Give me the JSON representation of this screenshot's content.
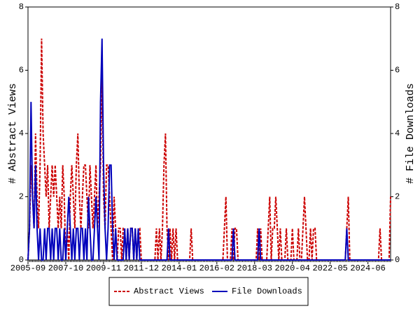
{
  "chart_data": {
    "type": "line",
    "x": [
      "2005-09",
      "2005-10",
      "2005-11",
      "2005-12",
      "2006-01",
      "2006-02",
      "2006-03",
      "2006-04",
      "2006-05",
      "2006-06",
      "2006-07",
      "2006-08",
      "2006-09",
      "2006-10",
      "2006-11",
      "2006-12",
      "2007-01",
      "2007-02",
      "2007-03",
      "2007-04",
      "2007-05",
      "2007-06",
      "2007-07",
      "2007-08",
      "2007-09",
      "2007-10",
      "2007-11",
      "2007-12",
      "2008-01",
      "2008-02",
      "2008-03",
      "2008-04",
      "2008-05",
      "2008-06",
      "2008-07",
      "2008-08",
      "2008-09",
      "2008-10",
      "2008-11",
      "2008-12",
      "2009-01",
      "2009-02",
      "2009-03",
      "2009-04",
      "2009-05",
      "2009-06",
      "2009-07",
      "2009-08",
      "2009-09",
      "2009-10",
      "2009-11",
      "2009-12",
      "2010-01",
      "2010-02",
      "2010-03",
      "2010-04",
      "2010-05",
      "2010-06",
      "2010-07",
      "2010-08",
      "2010-09",
      "2010-10",
      "2010-11",
      "2010-12",
      "2011-01",
      "2011-02",
      "2011-03",
      "2011-04",
      "2011-05",
      "2011-06",
      "2011-07",
      "2011-08",
      "2011-09",
      "2011-10",
      "2011-11",
      "2011-12",
      "2012-01",
      "2012-02",
      "2012-03",
      "2012-04",
      "2012-05",
      "2012-06",
      "2012-07",
      "2012-08",
      "2012-09",
      "2012-10",
      "2012-11",
      "2012-12",
      "2013-01",
      "2013-02",
      "2013-03",
      "2013-04",
      "2013-05",
      "2013-06",
      "2013-07",
      "2013-08",
      "2013-09",
      "2013-10",
      "2013-11",
      "2013-12",
      "2014-01",
      "2014-02",
      "2014-03",
      "2014-04",
      "2014-05",
      "2014-06",
      "2014-07",
      "2014-08",
      "2014-09",
      "2014-10",
      "2014-11",
      "2014-12",
      "2015-01",
      "2015-02",
      "2015-03",
      "2015-04",
      "2015-05",
      "2015-06",
      "2015-07",
      "2015-08",
      "2015-09",
      "2015-10",
      "2015-11",
      "2015-12",
      "2016-01",
      "2016-02",
      "2016-03",
      "2016-04",
      "2016-05",
      "2016-06",
      "2016-07",
      "2016-08",
      "2016-09",
      "2016-10",
      "2016-11",
      "2016-12",
      "2017-01",
      "2017-02",
      "2017-03",
      "2017-04",
      "2017-05",
      "2017-06",
      "2017-07",
      "2017-08",
      "2017-09",
      "2017-10",
      "2017-11",
      "2017-12",
      "2018-01",
      "2018-02",
      "2018-03",
      "2018-04",
      "2018-05",
      "2018-06",
      "2018-07",
      "2018-08",
      "2018-09",
      "2018-10",
      "2018-11",
      "2018-12",
      "2019-01",
      "2019-02",
      "2019-03",
      "2019-04",
      "2019-05",
      "2019-06",
      "2019-07",
      "2019-08",
      "2019-09",
      "2019-10",
      "2019-11",
      "2019-12",
      "2020-01",
      "2020-02",
      "2020-03",
      "2020-04",
      "2020-05",
      "2020-06",
      "2020-07",
      "2020-08",
      "2020-09",
      "2020-10",
      "2020-11",
      "2020-12",
      "2021-01",
      "2021-02",
      "2021-03",
      "2021-04",
      "2021-05",
      "2021-06",
      "2021-07",
      "2021-08",
      "2021-09",
      "2021-10",
      "2021-11",
      "2021-12",
      "2022-01",
      "2022-02",
      "2022-03",
      "2022-04",
      "2022-05",
      "2022-06",
      "2022-07",
      "2022-08",
      "2022-09",
      "2022-10",
      "2022-11",
      "2022-12",
      "2023-01",
      "2023-02",
      "2023-03",
      "2023-04",
      "2023-05",
      "2023-06",
      "2023-07",
      "2023-08",
      "2023-09",
      "2023-10",
      "2023-11",
      "2023-12",
      "2024-01",
      "2024-02",
      "2024-03",
      "2024-04",
      "2024-05",
      "2024-06",
      "2024-07",
      "2024-08",
      "2024-09",
      "2024-10",
      "2024-11",
      "2024-12",
      "2025-01",
      "2025-02",
      "2025-03",
      "2025-04",
      "2025-05",
      "2025-06",
      "2025-07",
      "2025-08",
      "2025-09"
    ],
    "xtick_indices": [
      0,
      25,
      50,
      75,
      100,
      125,
      150,
      175,
      200,
      225
    ],
    "ylabel": "# Abstract Views",
    "y2label": "# File Downloads",
    "ylim": [
      0,
      8
    ],
    "yticks": [
      0,
      2,
      4,
      6,
      8
    ],
    "y2lim": [
      0,
      8
    ],
    "y2ticks": [
      0,
      2,
      4,
      6,
      8
    ],
    "series": [
      {
        "name": "Abstract Views",
        "color": "#cc0000",
        "dashed": true,
        "values": [
          0,
          1,
          3,
          2,
          1,
          4,
          2,
          1,
          3,
          7,
          4,
          3,
          2,
          3,
          1,
          2,
          3,
          2,
          3,
          2,
          1,
          2,
          1,
          3,
          2,
          0,
          1,
          0,
          2,
          3,
          2,
          1,
          3,
          4,
          2,
          1,
          2,
          3,
          3,
          2,
          1,
          3,
          2,
          1,
          2,
          3,
          1,
          2,
          3,
          6,
          2,
          1,
          3,
          3,
          2,
          1,
          0,
          2,
          1,
          0,
          1,
          1,
          0,
          1,
          1,
          0,
          1,
          0,
          1,
          1,
          0,
          1,
          0,
          1,
          1,
          0,
          0,
          0,
          0,
          0,
          0,
          0,
          0,
          0,
          0,
          1,
          0,
          1,
          0,
          1,
          3,
          4,
          1,
          0,
          1,
          0,
          1,
          0,
          1,
          0,
          0,
          0,
          0,
          0,
          0,
          0,
          0,
          0,
          1,
          0,
          0,
          0,
          0,
          0,
          0,
          0,
          0,
          0,
          0,
          0,
          0,
          0,
          0,
          0,
          0,
          0,
          0,
          0,
          0,
          0,
          1,
          2,
          0,
          0,
          0,
          1,
          0,
          1,
          1,
          0,
          0,
          0,
          0,
          0,
          0,
          0,
          0,
          0,
          0,
          0,
          0,
          0,
          1,
          0,
          1,
          0,
          0,
          0,
          0,
          1,
          2,
          0,
          1,
          1,
          2,
          1,
          0,
          1,
          0,
          0,
          0,
          1,
          0,
          0,
          0,
          1,
          0,
          0,
          0,
          1,
          0,
          0,
          1,
          2,
          1,
          0,
          0,
          1,
          0,
          1,
          1,
          0,
          0,
          0,
          0,
          0,
          0,
          0,
          0,
          0,
          0,
          0,
          0,
          0,
          0,
          0,
          0,
          0,
          0,
          0,
          0,
          1,
          2,
          0,
          0,
          0,
          0,
          0,
          0,
          0,
          0,
          0,
          0,
          0,
          0,
          0,
          0,
          0,
          0,
          0,
          0,
          0,
          0,
          1,
          0,
          0,
          0,
          0,
          0,
          0,
          2
        ]
      },
      {
        "name": "File Downloads",
        "color": "#0000bb",
        "axis": "y2",
        "values": [
          0,
          1,
          5,
          2,
          1,
          3,
          1,
          0,
          1,
          0,
          0,
          1,
          0,
          1,
          1,
          0,
          1,
          0,
          1,
          1,
          0,
          1,
          0,
          0,
          1,
          0,
          1,
          2,
          1,
          0,
          1,
          0,
          1,
          1,
          0,
          1,
          1,
          0,
          1,
          0,
          2,
          1,
          0,
          0,
          1,
          2,
          1,
          0,
          5,
          7,
          3,
          1,
          0,
          1,
          3,
          3,
          1,
          0,
          1,
          0,
          0,
          0,
          0,
          0,
          1,
          0,
          1,
          0,
          1,
          1,
          0,
          1,
          0,
          1,
          0,
          0,
          0,
          0,
          0,
          0,
          0,
          0,
          0,
          0,
          0,
          0,
          0,
          0,
          0,
          0,
          0,
          0,
          0,
          1,
          0,
          0,
          0,
          0,
          0,
          0,
          0,
          0,
          0,
          0,
          0,
          0,
          0,
          0,
          0,
          0,
          0,
          0,
          0,
          0,
          0,
          0,
          0,
          0,
          0,
          0,
          0,
          0,
          0,
          0,
          0,
          0,
          0,
          0,
          0,
          0,
          0,
          0,
          0,
          0,
          0,
          0,
          1,
          0,
          0,
          0,
          0,
          0,
          0,
          0,
          0,
          0,
          0,
          0,
          0,
          0,
          0,
          0,
          0,
          1,
          0,
          0,
          0,
          0,
          0,
          0,
          0,
          0,
          0,
          0,
          0,
          0,
          0,
          0,
          0,
          0,
          0,
          0,
          0,
          0,
          0,
          0,
          0,
          0,
          0,
          0,
          0,
          0,
          0,
          0,
          0,
          0,
          0,
          0,
          0,
          0,
          0,
          0,
          0,
          0,
          0,
          0,
          0,
          0,
          0,
          0,
          0,
          0,
          0,
          0,
          0,
          0,
          0,
          0,
          0,
          0,
          0,
          1,
          0,
          0,
          0,
          0,
          0,
          0,
          0,
          0,
          0,
          0,
          0,
          0,
          0,
          0,
          0,
          0,
          0,
          0,
          0,
          0,
          0,
          0,
          0,
          0,
          0,
          0,
          0,
          0,
          0
        ]
      }
    ]
  }
}
